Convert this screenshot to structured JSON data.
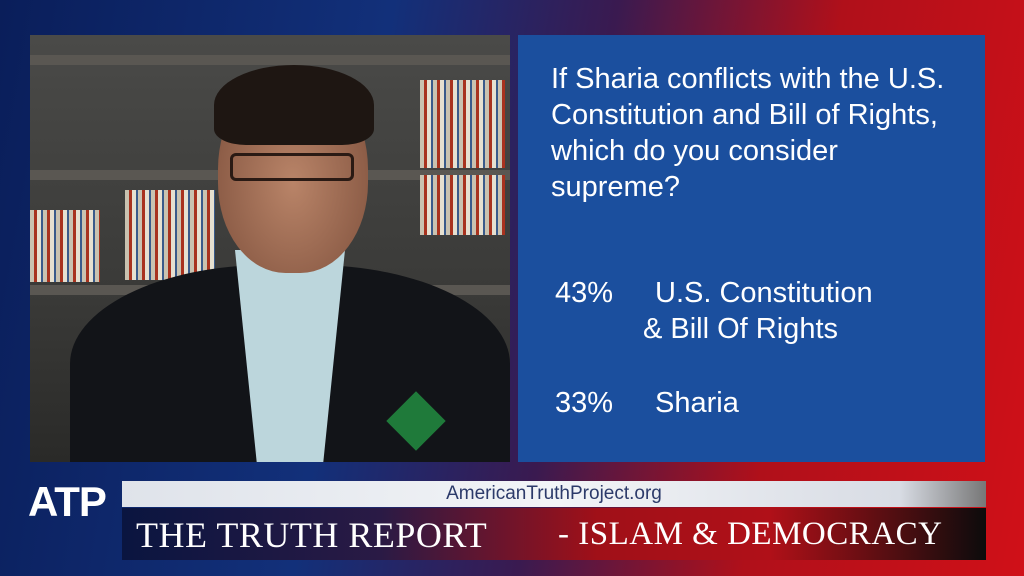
{
  "poll": {
    "question": "If Sharia conflicts with the U.S. Constitution and Bill of Rights, which do you consider supreme?",
    "answers": [
      {
        "percent": "43%",
        "label_line1": "U.S. Constitution",
        "label_line2": "& Bill Of Rights"
      },
      {
        "percent": "33%",
        "label_line1": "Sharia"
      }
    ],
    "panel_color": "#1b4f9e"
  },
  "lower_third": {
    "logo": "ATP",
    "website": "AmericanTruthProject.org",
    "title": "THE TRUTH REPORT",
    "subtitle": "- ISLAM & DEMOCRACY"
  }
}
